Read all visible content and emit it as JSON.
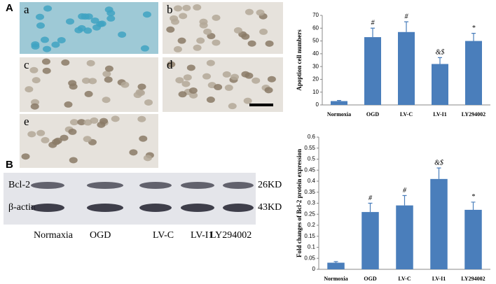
{
  "panel_labels": {
    "A": "A",
    "B": "B"
  },
  "micrographs": [
    "a",
    "b",
    "c",
    "d",
    "e"
  ],
  "blot": {
    "rows": [
      "Bcl-2",
      "β-actin"
    ],
    "sizes": [
      "26KD",
      "43KD"
    ],
    "lanes": [
      "Normaxia",
      "OGD",
      "LV-C",
      "LV-I1",
      "LY294002"
    ]
  },
  "chart_data": [
    {
      "type": "bar",
      "y_label": "Apoption cell numbers",
      "categories": [
        "Normoxia",
        "OGD",
        "LV-C",
        "LV-I1",
        "LY294002"
      ],
      "values": [
        3,
        53,
        57,
        32,
        50
      ],
      "errors": [
        0.5,
        7,
        8,
        5,
        6
      ],
      "annotations": [
        null,
        "#",
        "#",
        "&$",
        "*"
      ],
      "color": "#4a7ebb",
      "ylim": [
        0,
        70
      ],
      "yticks": [
        0,
        10,
        20,
        30,
        40,
        50,
        60,
        70
      ]
    },
    {
      "type": "bar",
      "y_label": "Fold changes of Bcl-2 protein expression",
      "categories": [
        "Normoxia",
        "OGD",
        "LV-C",
        "LV-I1",
        "LY294002"
      ],
      "values": [
        0.03,
        0.26,
        0.29,
        0.41,
        0.27
      ],
      "errors": [
        0.005,
        0.04,
        0.045,
        0.05,
        0.035
      ],
      "annotations": [
        null,
        "#",
        "#",
        "&$",
        "*"
      ],
      "color": "#4a7ebb",
      "ylim": [
        0,
        0.6
      ],
      "yticks": [
        0,
        0.05,
        0.1,
        0.15,
        0.2,
        0.25,
        0.3,
        0.35,
        0.4,
        0.45,
        0.5,
        0.55,
        0.6
      ]
    }
  ]
}
